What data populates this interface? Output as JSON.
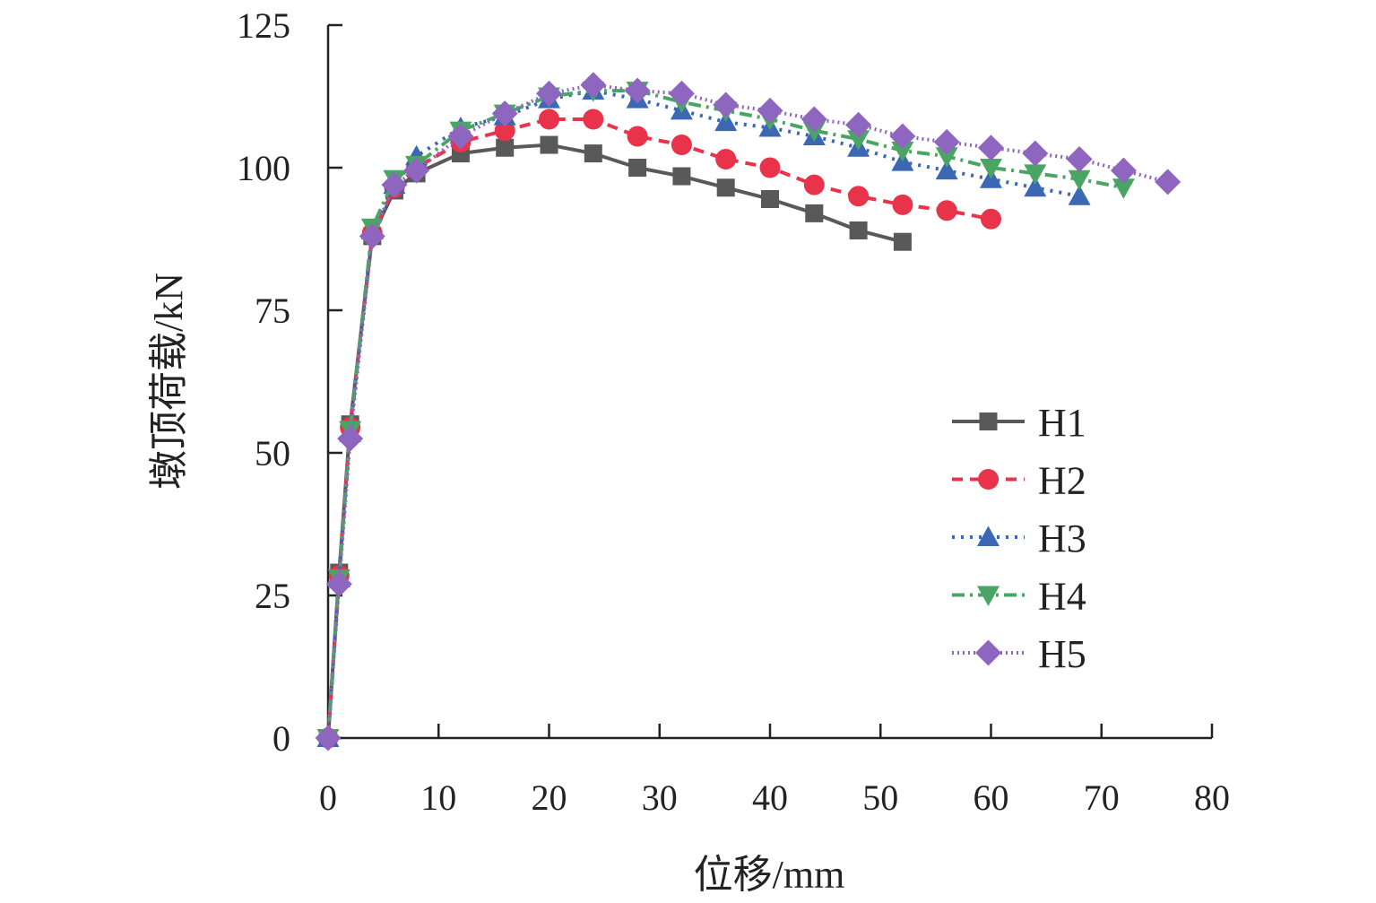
{
  "chart_data": {
    "type": "line",
    "title": "",
    "xlabel": "位移/mm",
    "ylabel": "墩顶荷载/kN",
    "xlim": [
      0,
      80
    ],
    "ylim": [
      0,
      125
    ],
    "xticks": [
      0,
      10,
      20,
      30,
      40,
      50,
      60,
      70,
      80
    ],
    "yticks": [
      0,
      25,
      50,
      75,
      100,
      125
    ],
    "grid": false,
    "legend_position": "right",
    "series": [
      {
        "name": "H1",
        "color": "#595959",
        "marker": "square",
        "line_style": "solid",
        "x": [
          0,
          1,
          2,
          4,
          6,
          8,
          12,
          16,
          20,
          24,
          28,
          32,
          36,
          40,
          44,
          48,
          52
        ],
        "y": [
          0,
          29,
          55,
          88,
          96,
          99,
          102.5,
          103.5,
          104,
          102.5,
          100,
          98.5,
          96.5,
          94.5,
          92,
          89,
          87
        ]
      },
      {
        "name": "H2",
        "color": "#e8334a",
        "marker": "circle",
        "line_style": "dashed",
        "x": [
          0,
          1,
          2,
          4,
          6,
          8,
          12,
          16,
          20,
          24,
          28,
          32,
          36,
          40,
          44,
          48,
          52,
          56,
          60
        ],
        "y": [
          0,
          28.5,
          54.5,
          88.5,
          96.5,
          100,
          104.5,
          106.5,
          108.5,
          108.5,
          105.5,
          104,
          101.5,
          100,
          97,
          95,
          93.5,
          92.5,
          91
        ]
      },
      {
        "name": "H3",
        "color": "#3b67b5",
        "marker": "triangle-up",
        "line_style": "dotted",
        "x": [
          0,
          1,
          2,
          4,
          6,
          8,
          12,
          16,
          20,
          24,
          28,
          32,
          36,
          40,
          44,
          48,
          52,
          56,
          60,
          64,
          68
        ],
        "y": [
          0,
          28,
          53.5,
          89,
          97,
          102,
          107,
          109,
          112,
          113.5,
          112,
          110,
          108,
          107,
          105.5,
          103.5,
          101,
          99.5,
          98,
          96.5,
          95
        ]
      },
      {
        "name": "H4",
        "color": "#4aa564",
        "marker": "triangle-down",
        "line_style": "dash-dot",
        "x": [
          0,
          1,
          2,
          4,
          6,
          8,
          12,
          16,
          20,
          24,
          28,
          32,
          36,
          40,
          44,
          48,
          52,
          56,
          60,
          64,
          68,
          72
        ],
        "y": [
          0,
          28,
          54,
          89.5,
          98,
          100.5,
          106.5,
          109.5,
          112.5,
          113.5,
          113.5,
          111.5,
          110,
          108.5,
          106.5,
          105,
          103,
          102,
          100,
          99,
          98,
          96.5
        ]
      },
      {
        "name": "H5",
        "color": "#8e66c0",
        "marker": "diamond",
        "line_style": "dense-dotted",
        "x": [
          0,
          1,
          2,
          4,
          6,
          8,
          12,
          16,
          20,
          24,
          28,
          32,
          36,
          40,
          44,
          48,
          52,
          56,
          60,
          64,
          68,
          72,
          76
        ],
        "y": [
          0,
          27,
          52.5,
          88,
          97,
          99.5,
          105.5,
          109.5,
          113,
          114.5,
          113.5,
          113,
          111,
          110,
          108.5,
          107.5,
          105.5,
          104.5,
          103.5,
          102.5,
          101.5,
          99.5,
          97.5
        ]
      }
    ]
  }
}
